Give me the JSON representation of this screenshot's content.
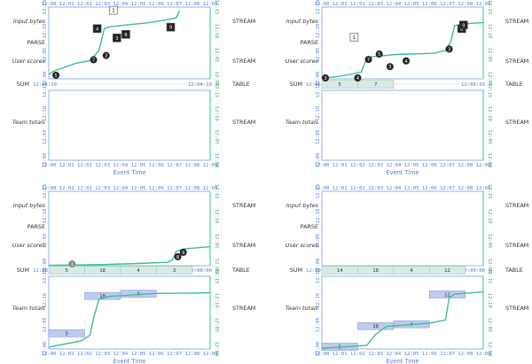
{
  "colors": {
    "teal": "#3bbf8f",
    "axis_blue": "#6a8fd8",
    "tick_blue": "#5a7fd0",
    "right_tick": "#3aa67e",
    "box_fill": "#b7c6ef",
    "box_stroke": "#7a93d9",
    "table_fill": "#d7ebe2",
    "table_stroke": "#9ccbb8",
    "data_dark": "#222222",
    "text": "#333333"
  },
  "labels": {
    "input_bytes": "Input bytes",
    "parse": "PARSE",
    "user_scores": "User scores",
    "sum": "SUM",
    "team_totals": "Team totals",
    "stream": "STREAM",
    "table": "TABLE",
    "event_time": "Event Time"
  },
  "x_ticks": [
    "12:00",
    "12:01",
    "12:02",
    "12:03",
    "12:04",
    "12:05",
    "12:06",
    "12:07",
    "12:08",
    "12:09"
  ],
  "y_ticks": [
    "12:00",
    "12:05",
    "12:10",
    "12:15"
  ],
  "panels": [
    {
      "id": "p1",
      "sum_left": "12:04:19",
      "sum_right": "12:04:19",
      "scores": [
        {
          "label": "5",
          "t": 0.4,
          "p": 1.0,
          "kind": "circle"
        },
        {
          "label": "7",
          "t": 2.5,
          "p": 5.3,
          "kind": "circle"
        },
        {
          "label": "3",
          "t": 3.2,
          "p": 6.5,
          "kind": "circle"
        },
        {
          "label": "4",
          "t": 2.7,
          "p": 14.0,
          "kind": "pending"
        },
        {
          "label": "3",
          "t": 3.8,
          "p": 11.4,
          "kind": "pending"
        },
        {
          "label": "8",
          "t": 4.3,
          "p": 12.4,
          "kind": "pending"
        },
        {
          "label": "9",
          "t": 6.8,
          "p": 14.4,
          "kind": "pending"
        },
        {
          "label": "1",
          "t": 3.6,
          "p": 19.1,
          "kind": "pending-light"
        }
      ],
      "watermark": [
        [
          0,
          1.2
        ],
        [
          0.3,
          2.2
        ],
        [
          1.5,
          4.3
        ],
        [
          2.3,
          5.1
        ],
        [
          2.8,
          7.9
        ],
        [
          3.1,
          14.0
        ],
        [
          3.4,
          14.5
        ],
        [
          4.5,
          15.1
        ],
        [
          5.5,
          15.6
        ],
        [
          6.6,
          16.5
        ],
        [
          7.1,
          17.0
        ],
        [
          7.3,
          19.0
        ]
      ],
      "segments": [],
      "totals": [],
      "totals_watermark": []
    },
    {
      "id": "p2",
      "sum_left": "12:05:39",
      "sum_right": "12:05:39",
      "scores": [
        {
          "label": "5",
          "t": 3.2,
          "p": 6.9,
          "kind": "circle"
        },
        {
          "label": "7",
          "t": 2.6,
          "p": 5.4,
          "kind": "circle"
        },
        {
          "label": "3",
          "t": 3.8,
          "p": 3.4,
          "kind": "circle"
        },
        {
          "label": "4",
          "t": 4.7,
          "p": 5.0,
          "kind": "circle"
        },
        {
          "label": "3",
          "t": 7.1,
          "p": 8.3,
          "kind": "circle"
        },
        {
          "label": "8",
          "t": 7.8,
          "p": 14.0,
          "kind": "pending"
        },
        {
          "label": "9",
          "t": 7.9,
          "p": 15.0,
          "kind": "pending"
        },
        {
          "label": "1",
          "t": 1.8,
          "p": 11.6,
          "kind": "pending-light"
        }
      ],
      "watermark": [
        [
          0,
          0.2
        ],
        [
          0.8,
          0.6
        ],
        [
          1.6,
          1.2
        ],
        [
          2.2,
          1.9
        ],
        [
          2.5,
          5.7
        ],
        [
          2.7,
          6.1
        ],
        [
          4.1,
          6.8
        ],
        [
          6.2,
          7.1
        ],
        [
          6.9,
          7.9
        ],
        [
          7.2,
          10.5
        ],
        [
          7.4,
          14.8
        ],
        [
          7.9,
          15.3
        ],
        [
          9.0,
          15.7
        ]
      ],
      "segments": [
        {
          "label": "5",
          "start": 0,
          "end": 2
        },
        {
          "label": "7",
          "start": 2,
          "end": 4
        }
      ],
      "extra_marks": [
        {
          "label": "3",
          "t": 0.2,
          "kind": "circle"
        },
        {
          "label": "4",
          "t": 2.0,
          "kind": "circle"
        }
      ],
      "totals": [],
      "totals_watermark": []
    },
    {
      "id": "p3",
      "sum_left": "12:08:00",
      "sum_right": "12:08:00",
      "scores": [
        {
          "label": "9",
          "t": 7.5,
          "p": 3.6,
          "kind": "circle"
        },
        {
          "label": "8",
          "t": 7.2,
          "p": 2.4,
          "kind": "circle"
        }
      ],
      "watermark": [
        [
          0,
          0.1
        ],
        [
          3,
          0.3
        ],
        [
          5,
          0.6
        ],
        [
          6.6,
          0.9
        ],
        [
          6.9,
          1.5
        ],
        [
          7.1,
          3.8
        ],
        [
          7.5,
          4.5
        ],
        [
          9.0,
          5.1
        ]
      ],
      "segments": [
        {
          "label": "5",
          "start": 0,
          "end": 2
        },
        {
          "label": "18",
          "start": 2,
          "end": 4
        },
        {
          "label": "4",
          "start": 4,
          "end": 6
        },
        {
          "label": "3",
          "start": 6,
          "end": 8
        }
      ],
      "extra_marks": [
        {
          "label": "1",
          "t": 1.3,
          "kind": "circle-grey"
        }
      ],
      "totals": [
        {
          "label": "5",
          "start": 0,
          "end": 2,
          "value": 4.3,
          "kind": "rect"
        },
        {
          "label": "18",
          "start": 2,
          "end": 4,
          "value": 14.6,
          "kind": "rect"
        },
        {
          "label": "4",
          "start": 4,
          "end": 6,
          "value": 15.2,
          "kind": "rect"
        }
      ],
      "totals_watermark": [
        [
          0,
          0.5
        ],
        [
          1.8,
          2.2
        ],
        [
          2.3,
          3.8
        ],
        [
          2.5,
          8.5
        ],
        [
          2.8,
          13.7
        ],
        [
          3.4,
          14.5
        ],
        [
          6,
          15.3
        ],
        [
          8,
          15.4
        ],
        [
          9,
          15.5
        ]
      ]
    },
    {
      "id": "p4",
      "sum_left": "12:09:00",
      "sum_right": "12:09:00",
      "scores": [],
      "watermark": [],
      "segments": [
        {
          "label": "14",
          "start": 0,
          "end": 2
        },
        {
          "label": "18",
          "start": 2,
          "end": 4
        },
        {
          "label": "4",
          "start": 4,
          "end": 6
        },
        {
          "label": "12",
          "start": 6,
          "end": 8
        }
      ],
      "totals": [
        {
          "label": "5",
          "start": 0,
          "end": 2,
          "value": 0.6,
          "kind": "rect"
        },
        {
          "label": "18",
          "start": 2,
          "end": 4,
          "value": 6.3,
          "kind": "rect"
        },
        {
          "label": "4",
          "start": 4,
          "end": 6,
          "value": 6.8,
          "kind": "rect"
        },
        {
          "label": "12",
          "start": 6,
          "end": 8,
          "value": 15.0,
          "kind": "rect"
        }
      ],
      "totals_watermark": [
        [
          0,
          0.2
        ],
        [
          2.5,
          1.0
        ],
        [
          3.0,
          4.0
        ],
        [
          3.6,
          6.2
        ],
        [
          6.0,
          7.1
        ],
        [
          6.9,
          8.0
        ],
        [
          7.1,
          14.1
        ],
        [
          7.4,
          15.1
        ],
        [
          9,
          15.7
        ]
      ]
    }
  ]
}
